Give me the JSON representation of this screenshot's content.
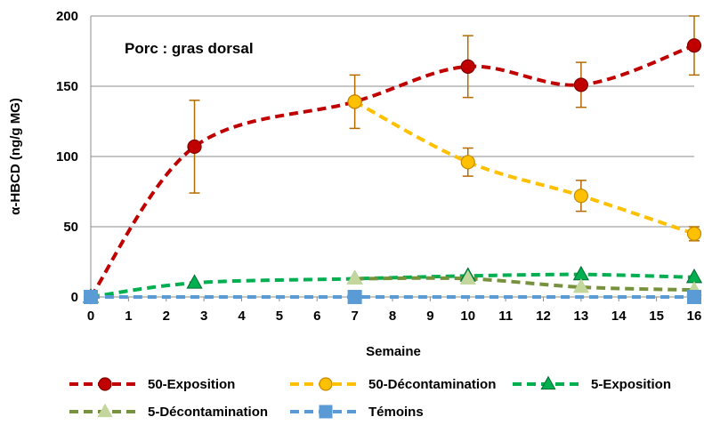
{
  "chart_data": {
    "type": "line",
    "annotation": "Porc : gras dorsal",
    "xlabel": "Semaine",
    "ylabel": "α-HBCD (ng/g MG)",
    "xlim": [
      0,
      16
    ],
    "ylim": [
      0,
      200
    ],
    "xticks": [
      0,
      1,
      2,
      3,
      4,
      5,
      6,
      7,
      8,
      9,
      10,
      11,
      12,
      13,
      14,
      15,
      16
    ],
    "yticks": [
      0,
      50,
      100,
      150,
      200
    ],
    "grid": "horizontal",
    "legend_position": "bottom",
    "series": [
      {
        "name": "50-Exposition",
        "color": "#c00000",
        "marker": "circle",
        "marker_fill": "#c00000",
        "marker_stroke": "#7f0000",
        "points": [
          {
            "x": 0,
            "y": 0
          },
          {
            "x": 2.75,
            "y": 107,
            "err": 33
          },
          {
            "x": 7,
            "y": 139,
            "err": 19
          },
          {
            "x": 10,
            "y": 164,
            "err": 22
          },
          {
            "x": 13,
            "y": 151,
            "err": 16
          },
          {
            "x": 16,
            "y": 179,
            "err": 21
          }
        ]
      },
      {
        "name": "50-Décontamination",
        "color": "#ffc000",
        "marker": "circle",
        "marker_fill": "#ffc000",
        "marker_stroke": "#c58a00",
        "points": [
          {
            "x": 7,
            "y": 139
          },
          {
            "x": 10,
            "y": 96,
            "err": 10
          },
          {
            "x": 13,
            "y": 72,
            "err": 11
          },
          {
            "x": 16,
            "y": 45,
            "err": 5
          }
        ]
      },
      {
        "name": "5-Exposition",
        "color": "#00b050",
        "marker": "triangle",
        "marker_fill": "#00b050",
        "marker_stroke": "#006b30",
        "points": [
          {
            "x": 0,
            "y": 0
          },
          {
            "x": 2.75,
            "y": 10
          },
          {
            "x": 7,
            "y": 13
          },
          {
            "x": 10,
            "y": 15
          },
          {
            "x": 13,
            "y": 16
          },
          {
            "x": 16,
            "y": 14
          }
        ]
      },
      {
        "name": "5-Décontamination",
        "color": "#76923c",
        "marker": "triangle",
        "marker_fill": "#c3d69b",
        "marker_stroke": "#c3d69b",
        "points": [
          {
            "x": 7,
            "y": 13
          },
          {
            "x": 10,
            "y": 13
          },
          {
            "x": 13,
            "y": 7
          },
          {
            "x": 16,
            "y": 5
          }
        ]
      },
      {
        "name": "Témoins",
        "color": "#5b9bd5",
        "marker": "square",
        "marker_fill": "#5b9bd5",
        "marker_stroke": "#5b9bd5",
        "points": [
          {
            "x": 0,
            "y": 0
          },
          {
            "x": 7,
            "y": 0
          },
          {
            "x": 16,
            "y": 0
          }
        ]
      }
    ]
  }
}
